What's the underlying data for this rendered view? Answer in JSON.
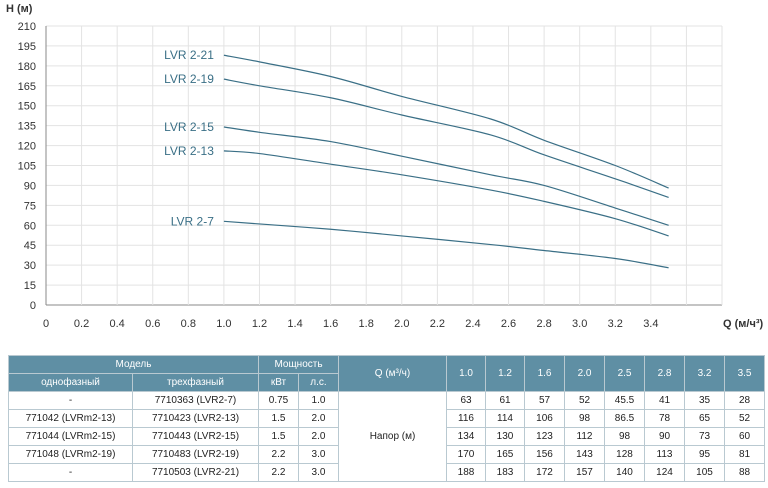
{
  "chart_data": {
    "type": "line",
    "ylabel": "H (м)",
    "xlabel": "Q (м/ч³)",
    "xlim": [
      0,
      3.8
    ],
    "ylim": [
      0,
      210
    ],
    "xticks": [
      "0",
      "0.2",
      "0.4",
      "0.6",
      "0.8",
      "1.0",
      "1.2",
      "1.4",
      "1.6",
      "1.8",
      "2.0",
      "2.2",
      "2.4",
      "2.6",
      "2.8",
      "3.0",
      "3.2",
      "3.4"
    ],
    "yticks": [
      "0",
      "15",
      "30",
      "45",
      "60",
      "75",
      "90",
      "105",
      "120",
      "135",
      "150",
      "165",
      "180",
      "195",
      "210"
    ],
    "grid": true,
    "x": [
      1.0,
      1.2,
      1.6,
      2.0,
      2.5,
      2.8,
      3.2,
      3.5
    ],
    "series": [
      {
        "name": "LVR 2-21",
        "values": [
          188,
          183,
          172,
          157,
          140,
          124,
          105,
          88
        ]
      },
      {
        "name": "LVR 2-19",
        "values": [
          170,
          165,
          156,
          143,
          128,
          113,
          95,
          81
        ]
      },
      {
        "name": "LVR 2-15",
        "values": [
          134,
          130,
          123,
          112,
          98,
          90,
          73,
          60
        ]
      },
      {
        "name": "LVR 2-13",
        "values": [
          116,
          114,
          106,
          98,
          86.5,
          78,
          65,
          52
        ]
      },
      {
        "name": "LVR 2-7",
        "values": [
          63,
          61,
          57,
          52,
          45.5,
          41,
          35,
          28
        ]
      }
    ]
  },
  "colors": {
    "curve": "#3a6f86",
    "grid": "#e3e3e3",
    "header": "#5f8fa4"
  },
  "table": {
    "model_header": "Модель",
    "power_header": "Мощность",
    "q_header": "Q (м³/ч)",
    "single_phase_header": "однофазный",
    "three_phase_header": "трехфазный",
    "kw_header": "кВт",
    "hp_header": "л.с.",
    "head_label": "Напор (м)",
    "q_values": [
      "1.0",
      "1.2",
      "1.6",
      "2.0",
      "2.5",
      "2.8",
      "3.2",
      "3.5"
    ],
    "rows": [
      {
        "single": "-",
        "three": "7710363 (LVR2-7)",
        "kw": "0.75",
        "hp": "1.0",
        "heads": [
          "63",
          "61",
          "57",
          "52",
          "45.5",
          "41",
          "35",
          "28"
        ]
      },
      {
        "single": "771042 (LVRm2-13)",
        "three": "7710423 (LVR2-13)",
        "kw": "1.5",
        "hp": "2.0",
        "heads": [
          "116",
          "114",
          "106",
          "98",
          "86.5",
          "78",
          "65",
          "52"
        ]
      },
      {
        "single": "771044 (LVRm2-15)",
        "three": "7710443 (LVR2-15)",
        "kw": "1.5",
        "hp": "2.0",
        "heads": [
          "134",
          "130",
          "123",
          "112",
          "98",
          "90",
          "73",
          "60"
        ]
      },
      {
        "single": "771048 (LVRm2-19)",
        "three": "7710483 (LVR2-19)",
        "kw": "2.2",
        "hp": "3.0",
        "heads": [
          "170",
          "165",
          "156",
          "143",
          "128",
          "113",
          "95",
          "81"
        ]
      },
      {
        "single": "-",
        "three": "7710503 (LVR2-21)",
        "kw": "2.2",
        "hp": "3.0",
        "heads": [
          "188",
          "183",
          "172",
          "157",
          "140",
          "124",
          "105",
          "88"
        ]
      }
    ]
  }
}
